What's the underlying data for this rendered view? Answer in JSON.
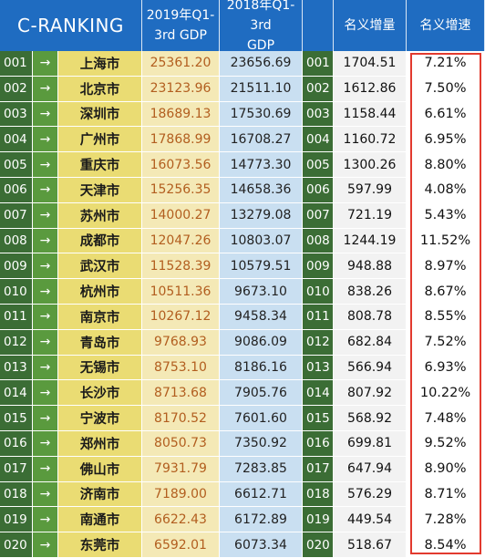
{
  "chart_data": {
    "type": "table",
    "headers": {
      "brand": "C-RANKING",
      "gdp_2019": "2019年Q1-\n3rd GDP",
      "gdp_2018": "2018年Q1-3rd\nGDP",
      "increase": "名义增量",
      "growth": "名义增速"
    },
    "arrow_symbol": "→",
    "colors": {
      "header_blue": "#1f6cc1",
      "rank_green": "#3b6d35",
      "gdp2019_text": "#b25e1f",
      "highlight_red": "#e23a2e"
    },
    "rows": [
      {
        "rank": "001",
        "city": "上海市",
        "gdp_2019": "25361.20",
        "gdp_2018": "23656.69",
        "rank2": "001",
        "increase": "1704.51",
        "growth": "7.21%"
      },
      {
        "rank": "002",
        "city": "北京市",
        "gdp_2019": "23123.96",
        "gdp_2018": "21511.10",
        "rank2": "002",
        "increase": "1612.86",
        "growth": "7.50%"
      },
      {
        "rank": "003",
        "city": "深圳市",
        "gdp_2019": "18689.13",
        "gdp_2018": "17530.69",
        "rank2": "003",
        "increase": "1158.44",
        "growth": "6.61%"
      },
      {
        "rank": "004",
        "city": "广州市",
        "gdp_2019": "17868.99",
        "gdp_2018": "16708.27",
        "rank2": "004",
        "increase": "1160.72",
        "growth": "6.95%"
      },
      {
        "rank": "005",
        "city": "重庆市",
        "gdp_2019": "16073.56",
        "gdp_2018": "14773.30",
        "rank2": "005",
        "increase": "1300.26",
        "growth": "8.80%"
      },
      {
        "rank": "006",
        "city": "天津市",
        "gdp_2019": "15256.35",
        "gdp_2018": "14658.36",
        "rank2": "006",
        "increase": "597.99",
        "growth": "4.08%"
      },
      {
        "rank": "007",
        "city": "苏州市",
        "gdp_2019": "14000.27",
        "gdp_2018": "13279.08",
        "rank2": "007",
        "increase": "721.19",
        "growth": "5.43%"
      },
      {
        "rank": "008",
        "city": "成都市",
        "gdp_2019": "12047.26",
        "gdp_2018": "10803.07",
        "rank2": "008",
        "increase": "1244.19",
        "growth": "11.52%"
      },
      {
        "rank": "009",
        "city": "武汉市",
        "gdp_2019": "11528.39",
        "gdp_2018": "10579.51",
        "rank2": "009",
        "increase": "948.88",
        "growth": "8.97%"
      },
      {
        "rank": "010",
        "city": "杭州市",
        "gdp_2019": "10511.36",
        "gdp_2018": "9673.10",
        "rank2": "010",
        "increase": "838.26",
        "growth": "8.67%"
      },
      {
        "rank": "011",
        "city": "南京市",
        "gdp_2019": "10267.12",
        "gdp_2018": "9458.34",
        "rank2": "011",
        "increase": "808.78",
        "growth": "8.55%"
      },
      {
        "rank": "012",
        "city": "青岛市",
        "gdp_2019": "9768.93",
        "gdp_2018": "9086.09",
        "rank2": "012",
        "increase": "682.84",
        "growth": "7.52%"
      },
      {
        "rank": "013",
        "city": "无锡市",
        "gdp_2019": "8753.10",
        "gdp_2018": "8186.16",
        "rank2": "013",
        "increase": "566.94",
        "growth": "6.93%"
      },
      {
        "rank": "014",
        "city": "长沙市",
        "gdp_2019": "8713.68",
        "gdp_2018": "7905.76",
        "rank2": "014",
        "increase": "807.92",
        "growth": "10.22%"
      },
      {
        "rank": "015",
        "city": "宁波市",
        "gdp_2019": "8170.52",
        "gdp_2018": "7601.60",
        "rank2": "015",
        "increase": "568.92",
        "growth": "7.48%"
      },
      {
        "rank": "016",
        "city": "郑州市",
        "gdp_2019": "8050.73",
        "gdp_2018": "7350.92",
        "rank2": "016",
        "increase": "699.81",
        "growth": "9.52%"
      },
      {
        "rank": "017",
        "city": "佛山市",
        "gdp_2019": "7931.79",
        "gdp_2018": "7283.85",
        "rank2": "017",
        "increase": "647.94",
        "growth": "8.90%"
      },
      {
        "rank": "018",
        "city": "济南市",
        "gdp_2019": "7189.00",
        "gdp_2018": "6612.71",
        "rank2": "018",
        "increase": "576.29",
        "growth": "8.71%"
      },
      {
        "rank": "019",
        "city": "南通市",
        "gdp_2019": "6622.43",
        "gdp_2018": "6172.89",
        "rank2": "019",
        "increase": "449.54",
        "growth": "7.28%"
      },
      {
        "rank": "020",
        "city": "东莞市",
        "gdp_2019": "6592.01",
        "gdp_2018": "6073.34",
        "rank2": "020",
        "increase": "518.67",
        "growth": "8.54%"
      }
    ]
  }
}
